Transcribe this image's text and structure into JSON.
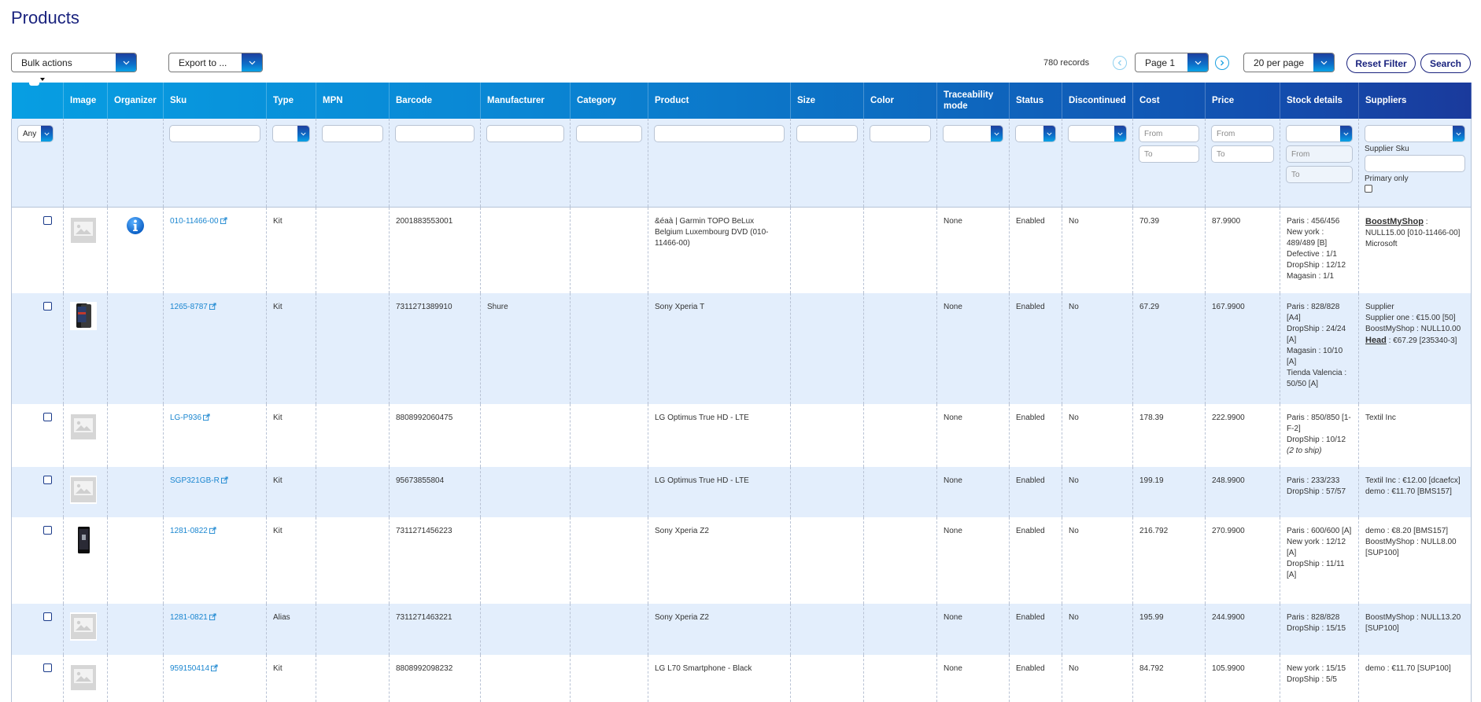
{
  "page": {
    "title": "Products"
  },
  "toolbar": {
    "bulk_actions": "Bulk actions",
    "export_to": "Export to ...",
    "records": "780 records",
    "page_select": "Page 1",
    "per_page": "20 per page",
    "reset_filter": "Reset Filter",
    "search": "Search"
  },
  "colors": {
    "title": "#1a237e",
    "link": "#1a86d0",
    "header_start": "#079ee2",
    "header_end": "#1a3a9c",
    "alt_row": "#e3eefc"
  },
  "columns": [
    "",
    "Image",
    "Organizer",
    "Sku",
    "Type",
    "MPN",
    "Barcode",
    "Manufacturer",
    "Category",
    "Product",
    "Size",
    "Color",
    "Traceability mode",
    "Status",
    "Discontinued",
    "Cost",
    "Price",
    "Stock details",
    "Suppliers"
  ],
  "filters": {
    "select_any": "Any",
    "cost_from_placeholder": "From",
    "cost_to_placeholder": "To",
    "price_from_placeholder": "From",
    "price_to_placeholder": "To",
    "stock_from_placeholder": "From",
    "stock_to_placeholder": "To",
    "supplier_sku_label": "Supplier Sku",
    "primary_only_label": "Primary only"
  },
  "rows": [
    {
      "image": "placeholder",
      "organizer": "info",
      "sku": "010-11466-00",
      "type": "Kit",
      "mpn": "",
      "barcode": "2001883553001",
      "manufacturer": "",
      "category": "",
      "product": "&éaà | Garmin TOPO BeLux Belgium Luxembourg DVD (010-11466-00)",
      "size": "",
      "color": "",
      "traceability": "None",
      "status": "Enabled",
      "discontinued": "No",
      "cost": "70.39",
      "price": "87.9900",
      "stock": [
        "Paris : 456/456",
        "New york : 489/489 [B]",
        "Defective : 1/1",
        "DropShip : 12/12",
        "Magasin : 1/1"
      ],
      "suppliers": [
        {
          "name": "BoostMyShop",
          "underline": true,
          "text": " :"
        },
        {
          "text": "NULL15.00 [010-11466-00]"
        },
        {
          "text": "Microsoft"
        }
      ]
    },
    {
      "image": "phone-xperia-t",
      "organizer": "",
      "sku": "1265-8787",
      "type": "Kit",
      "mpn": "",
      "barcode": "7311271389910",
      "manufacturer": "Shure",
      "category": "",
      "product": "Sony Xperia T",
      "size": "",
      "color": "",
      "traceability": "None",
      "status": "Enabled",
      "discontinued": "No",
      "cost": "67.29",
      "price": "167.9900",
      "stock": [
        "Paris : 828/828 [A4]",
        "DropShip : 24/24 [A]",
        "Magasin : 10/10 [A]",
        "Tienda Valencia : 50/50 [A]"
      ],
      "suppliers": [
        {
          "text": "Supplier"
        },
        {
          "text": "Supplier one : €15.00 [50]"
        },
        {
          "text": "BoostMyShop : NULL10.00"
        },
        {
          "name": "Head",
          "underline": true,
          "text": " : €67.29 [235340-3]"
        }
      ]
    },
    {
      "image": "placeholder",
      "organizer": "",
      "sku": "LG-P936",
      "type": "Kit",
      "mpn": "",
      "barcode": "8808992060475",
      "manufacturer": "",
      "category": "",
      "product": "LG Optimus True HD - LTE",
      "size": "",
      "color": "",
      "traceability": "None",
      "status": "Enabled",
      "discontinued": "No",
      "cost": "178.39",
      "price": "222.9900",
      "stock": [
        "Paris : 850/850 [1-F-2]",
        "DropShip : 10/12"
      ],
      "stock_note": "(2 to ship)",
      "suppliers": [
        {
          "text": "Textil Inc"
        }
      ]
    },
    {
      "image": "placeholder",
      "organizer": "",
      "sku": "SGP321GB-R",
      "type": "Kit",
      "mpn": "",
      "barcode": "95673855804",
      "manufacturer": "",
      "category": "",
      "product": "LG Optimus True HD - LTE",
      "size": "",
      "color": "",
      "traceability": "None",
      "status": "Enabled",
      "discontinued": "No",
      "cost": "199.19",
      "price": "248.9900",
      "stock": [
        "Paris : 233/233",
        "DropShip : 57/57"
      ],
      "suppliers": [
        {
          "text": "Textil Inc : €12.00 [dcaefcx]"
        },
        {
          "text": "demo : €11.70 [BMS157]"
        }
      ]
    },
    {
      "image": "phone-xperia-z2",
      "organizer": "",
      "sku": "1281-0822",
      "type": "Kit",
      "mpn": "",
      "barcode": "7311271456223",
      "manufacturer": "",
      "category": "",
      "product": "Sony Xperia Z2",
      "size": "",
      "color": "",
      "traceability": "None",
      "status": "Enabled",
      "discontinued": "No",
      "cost": "216.792",
      "price": "270.9900",
      "stock": [
        "Paris : 600/600 [A]",
        "New york : 12/12 [A]",
        "DropShip : 11/11 [A]"
      ],
      "suppliers": [
        {
          "text": "demo : €8.20 [BMS157]"
        },
        {
          "text": "BoostMyShop : NULL8.00 [SUP100]"
        }
      ]
    },
    {
      "image": "placeholder",
      "organizer": "",
      "sku": "1281-0821",
      "type": "Alias",
      "mpn": "",
      "barcode": "7311271463221",
      "manufacturer": "",
      "category": "",
      "product": "Sony Xperia Z2",
      "size": "",
      "color": "",
      "traceability": "None",
      "status": "Enabled",
      "discontinued": "No",
      "cost": "195.99",
      "price": "244.9900",
      "stock": [
        "Paris : 828/828",
        "DropShip : 15/15"
      ],
      "suppliers": [
        {
          "text": "BoostMyShop : NULL13.20 [SUP100]"
        }
      ]
    },
    {
      "image": "placeholder",
      "organizer": "",
      "sku": "959150414",
      "type": "Kit",
      "mpn": "",
      "barcode": "8808992098232",
      "manufacturer": "",
      "category": "",
      "product": "LG L70 Smartphone - Black",
      "size": "",
      "color": "",
      "traceability": "None",
      "status": "Enabled",
      "discontinued": "No",
      "cost": "84.792",
      "price": "105.9900",
      "stock": [
        "New york : 15/15",
        "DropShip : 5/5"
      ],
      "suppliers": [
        {
          "text": "demo : €11.70 [SUP100]"
        }
      ]
    }
  ]
}
